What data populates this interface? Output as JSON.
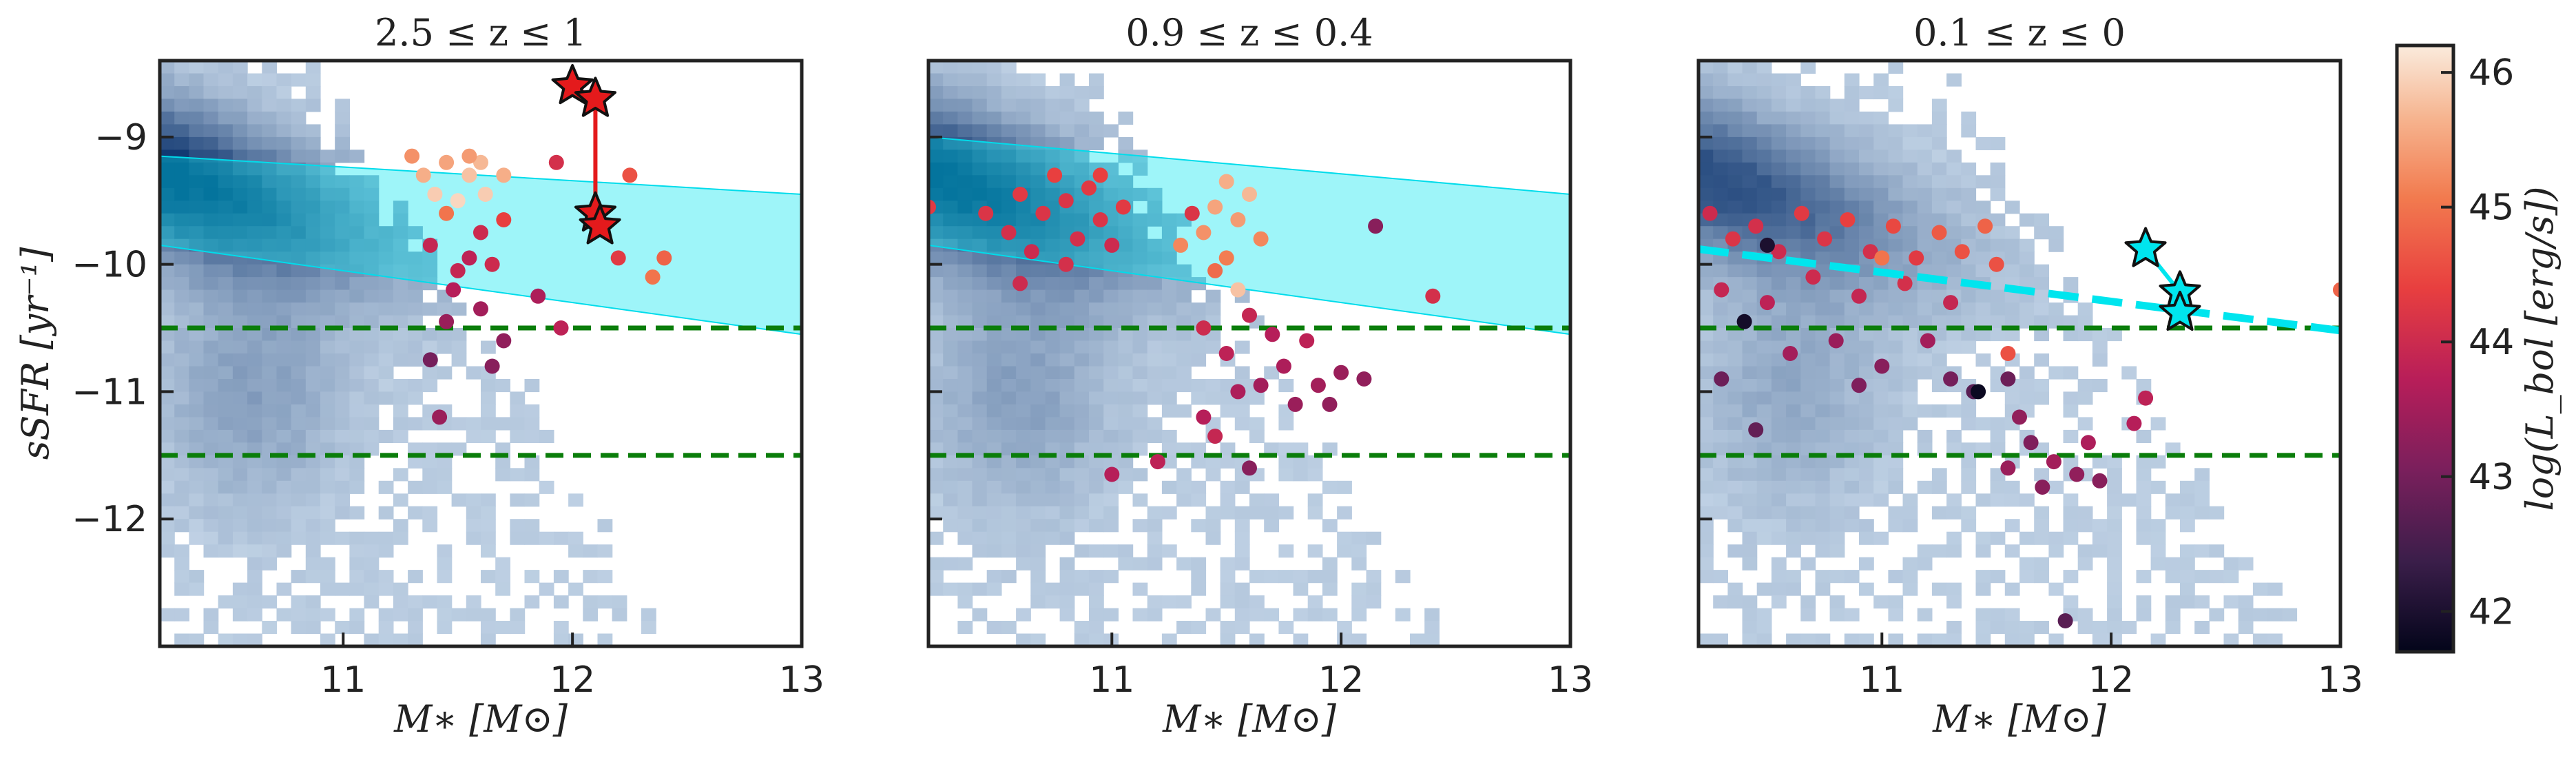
{
  "chart_data": [
    {
      "type": "scatter",
      "title": "2.5 ≤ z ≤ 1",
      "xlabel": "M∗ [M⊙]",
      "ylabel": "sSFR [yr⁻¹]",
      "xlim": [
        10.2,
        13.0
      ],
      "ylim": [
        -13.0,
        -8.4
      ],
      "xticks": [
        "11",
        "12",
        "13"
      ],
      "yticks": [
        "−9",
        "−10",
        "−11",
        "−12"
      ],
      "background": "2D histogram of galaxy population (blue)",
      "hlines": [
        -10.5,
        -11.5
      ],
      "band": {
        "x": [
          10.2,
          13.0
        ],
        "upper": [
          -9.15,
          -9.45
        ],
        "lower": [
          -9.85,
          -10.55
        ]
      },
      "track": [
        [
          12.0,
          -8.6
        ],
        [
          12.1,
          -8.7
        ],
        [
          12.1,
          -9.6
        ],
        [
          12.12,
          -9.7
        ]
      ],
      "points": [
        {
          "x": 11.3,
          "y": -9.15,
          "lbol": 45.3
        },
        {
          "x": 11.35,
          "y": -9.3,
          "lbol": 45.6
        },
        {
          "x": 11.4,
          "y": -9.45,
          "lbol": 45.9
        },
        {
          "x": 11.45,
          "y": -9.2,
          "lbol": 45.5
        },
        {
          "x": 11.5,
          "y": -9.5,
          "lbol": 46.0
        },
        {
          "x": 11.55,
          "y": -9.3,
          "lbol": 45.8
        },
        {
          "x": 11.6,
          "y": -9.2,
          "lbol": 45.7
        },
        {
          "x": 11.62,
          "y": -9.45,
          "lbol": 45.9
        },
        {
          "x": 11.7,
          "y": -9.3,
          "lbol": 45.6
        },
        {
          "x": 11.55,
          "y": -9.15,
          "lbol": 45.4
        },
        {
          "x": 11.45,
          "y": -9.6,
          "lbol": 45.0
        },
        {
          "x": 11.7,
          "y": -9.65,
          "lbol": 44.4
        },
        {
          "x": 11.6,
          "y": -9.75,
          "lbol": 44.0
        },
        {
          "x": 11.55,
          "y": -9.95,
          "lbol": 43.8
        },
        {
          "x": 11.5,
          "y": -10.05,
          "lbol": 43.9
        },
        {
          "x": 11.65,
          "y": -10.0,
          "lbol": 44.0
        },
        {
          "x": 11.48,
          "y": -10.2,
          "lbol": 43.7
        },
        {
          "x": 11.6,
          "y": -10.35,
          "lbol": 43.5
        },
        {
          "x": 11.45,
          "y": -10.45,
          "lbol": 43.4
        },
        {
          "x": 11.7,
          "y": -10.6,
          "lbol": 43.3
        },
        {
          "x": 11.65,
          "y": -10.8,
          "lbol": 43.2
        },
        {
          "x": 11.38,
          "y": -10.75,
          "lbol": 43.0
        },
        {
          "x": 11.42,
          "y": -11.2,
          "lbol": 43.4
        },
        {
          "x": 11.85,
          "y": -10.25,
          "lbol": 43.6
        },
        {
          "x": 11.95,
          "y": -10.5,
          "lbol": 43.8
        },
        {
          "x": 11.93,
          "y": -9.2,
          "lbol": 44.1
        },
        {
          "x": 12.2,
          "y": -9.95,
          "lbol": 44.3
        },
        {
          "x": 12.25,
          "y": -9.3,
          "lbol": 44.6
        },
        {
          "x": 12.35,
          "y": -10.1,
          "lbol": 45.0
        },
        {
          "x": 12.4,
          "y": -9.95,
          "lbol": 44.8
        },
        {
          "x": 11.38,
          "y": -9.85,
          "lbol": 43.9
        }
      ],
      "stars": [
        {
          "x": 12.0,
          "y": -8.6,
          "color": "#e41a1c"
        },
        {
          "x": 12.1,
          "y": -8.7,
          "color": "#e41a1c"
        },
        {
          "x": 12.1,
          "y": -9.6,
          "color": "#e41a1c"
        },
        {
          "x": 12.12,
          "y": -9.7,
          "color": "#e41a1c"
        }
      ]
    },
    {
      "type": "scatter",
      "title": "0.9 ≤ z ≤ 0.4",
      "xlabel": "M∗ [M⊙]",
      "xlim": [
        10.2,
        13.0
      ],
      "ylim": [
        -13.0,
        -8.4
      ],
      "xticks": [
        "11",
        "12",
        "13"
      ],
      "hlines": [
        -10.5,
        -11.5
      ],
      "band": {
        "x": [
          10.2,
          13.0
        ],
        "upper": [
          -9.0,
          -9.45
        ],
        "lower": [
          -9.85,
          -10.55
        ]
      },
      "points": [
        {
          "x": 10.2,
          "y": -9.55,
          "lbol": 44.3
        },
        {
          "x": 10.45,
          "y": -9.6,
          "lbol": 44.2
        },
        {
          "x": 10.55,
          "y": -9.75,
          "lbol": 44.1
        },
        {
          "x": 10.6,
          "y": -9.45,
          "lbol": 44.3
        },
        {
          "x": 10.65,
          "y": -9.9,
          "lbol": 44.0
        },
        {
          "x": 10.7,
          "y": -9.6,
          "lbol": 44.2
        },
        {
          "x": 10.75,
          "y": -9.3,
          "lbol": 44.4
        },
        {
          "x": 10.8,
          "y": -9.5,
          "lbol": 44.2
        },
        {
          "x": 10.85,
          "y": -9.8,
          "lbol": 44.1
        },
        {
          "x": 10.9,
          "y": -9.4,
          "lbol": 44.3
        },
        {
          "x": 10.95,
          "y": -9.65,
          "lbol": 44.2
        },
        {
          "x": 11.0,
          "y": -9.85,
          "lbol": 44.0
        },
        {
          "x": 11.05,
          "y": -9.55,
          "lbol": 44.3
        },
        {
          "x": 10.6,
          "y": -10.15,
          "lbol": 44.0
        },
        {
          "x": 10.8,
          "y": -10.0,
          "lbol": 44.1
        },
        {
          "x": 10.95,
          "y": -9.3,
          "lbol": 44.4
        },
        {
          "x": 11.3,
          "y": -9.85,
          "lbol": 45.2
        },
        {
          "x": 11.4,
          "y": -9.75,
          "lbol": 45.3
        },
        {
          "x": 11.45,
          "y": -9.55,
          "lbol": 45.5
        },
        {
          "x": 11.5,
          "y": -9.35,
          "lbol": 45.6
        },
        {
          "x": 11.55,
          "y": -9.65,
          "lbol": 45.4
        },
        {
          "x": 11.6,
          "y": -9.45,
          "lbol": 45.7
        },
        {
          "x": 11.65,
          "y": -9.8,
          "lbol": 45.2
        },
        {
          "x": 11.5,
          "y": -9.95,
          "lbol": 45.1
        },
        {
          "x": 11.55,
          "y": -10.2,
          "lbol": 45.8
        },
        {
          "x": 11.45,
          "y": -10.05,
          "lbol": 44.9
        },
        {
          "x": 11.4,
          "y": -10.5,
          "lbol": 44.0
        },
        {
          "x": 11.5,
          "y": -10.7,
          "lbol": 43.8
        },
        {
          "x": 11.6,
          "y": -10.4,
          "lbol": 43.9
        },
        {
          "x": 11.7,
          "y": -10.55,
          "lbol": 43.7
        },
        {
          "x": 11.75,
          "y": -10.8,
          "lbol": 43.6
        },
        {
          "x": 11.65,
          "y": -10.95,
          "lbol": 43.5
        },
        {
          "x": 11.55,
          "y": -11.0,
          "lbol": 43.6
        },
        {
          "x": 11.8,
          "y": -11.1,
          "lbol": 43.4
        },
        {
          "x": 11.85,
          "y": -10.6,
          "lbol": 43.8
        },
        {
          "x": 11.9,
          "y": -10.95,
          "lbol": 43.5
        },
        {
          "x": 11.95,
          "y": -11.1,
          "lbol": 43.3
        },
        {
          "x": 12.0,
          "y": -10.85,
          "lbol": 43.4
        },
        {
          "x": 11.4,
          "y": -11.2,
          "lbol": 43.7
        },
        {
          "x": 11.45,
          "y": -11.35,
          "lbol": 43.9
        },
        {
          "x": 11.2,
          "y": -11.55,
          "lbol": 43.8
        },
        {
          "x": 11.0,
          "y": -11.65,
          "lbol": 43.7
        },
        {
          "x": 11.6,
          "y": -11.6,
          "lbol": 43.2
        },
        {
          "x": 12.15,
          "y": -9.7,
          "lbol": 43.2
        },
        {
          "x": 12.4,
          "y": -10.25,
          "lbol": 44.1
        },
        {
          "x": 12.1,
          "y": -10.9,
          "lbol": 43.3
        },
        {
          "x": 11.35,
          "y": -9.6,
          "lbol": 44.2
        }
      ]
    },
    {
      "type": "scatter",
      "title": "0.1 ≤ z ≤ 0",
      "xlabel": "M∗ [M⊙]",
      "xlim": [
        10.2,
        13.0
      ],
      "ylim": [
        -13.0,
        -8.4
      ],
      "xticks": [
        "11",
        "12",
        "13"
      ],
      "hlines": [
        -10.5,
        -11.5
      ],
      "fit_line": {
        "x": [
          10.2,
          13.0
        ],
        "y": [
          -9.88,
          -10.52
        ],
        "color": "#00e5ee"
      },
      "track": [
        [
          12.15,
          -9.88
        ],
        [
          12.3,
          -10.22
        ],
        [
          12.3,
          -10.38
        ]
      ],
      "points": [
        {
          "x": 10.25,
          "y": -9.6,
          "lbol": 44.0
        },
        {
          "x": 10.35,
          "y": -9.8,
          "lbol": 44.2
        },
        {
          "x": 10.45,
          "y": -9.7,
          "lbol": 44.1
        },
        {
          "x": 10.55,
          "y": -9.9,
          "lbol": 44.0
        },
        {
          "x": 10.65,
          "y": -9.6,
          "lbol": 44.3
        },
        {
          "x": 10.75,
          "y": -9.8,
          "lbol": 44.2
        },
        {
          "x": 10.85,
          "y": -9.65,
          "lbol": 44.4
        },
        {
          "x": 10.95,
          "y": -9.9,
          "lbol": 44.1
        },
        {
          "x": 11.05,
          "y": -9.7,
          "lbol": 44.5
        },
        {
          "x": 11.15,
          "y": -9.95,
          "lbol": 44.3
        },
        {
          "x": 11.25,
          "y": -9.75,
          "lbol": 44.7
        },
        {
          "x": 11.35,
          "y": -9.9,
          "lbol": 44.6
        },
        {
          "x": 11.45,
          "y": -9.7,
          "lbol": 44.8
        },
        {
          "x": 11.5,
          "y": -10.0,
          "lbol": 44.6
        },
        {
          "x": 10.3,
          "y": -10.2,
          "lbol": 43.9
        },
        {
          "x": 10.5,
          "y": -10.3,
          "lbol": 43.8
        },
        {
          "x": 10.7,
          "y": -10.1,
          "lbol": 44.0
        },
        {
          "x": 10.9,
          "y": -10.25,
          "lbol": 43.9
        },
        {
          "x": 11.1,
          "y": -10.15,
          "lbol": 44.1
        },
        {
          "x": 11.3,
          "y": -10.3,
          "lbol": 43.9
        },
        {
          "x": 10.4,
          "y": -10.45,
          "lbol": 41.9
        },
        {
          "x": 10.5,
          "y": -9.85,
          "lbol": 42.0
        },
        {
          "x": 10.6,
          "y": -10.7,
          "lbol": 43.5
        },
        {
          "x": 10.8,
          "y": -10.6,
          "lbol": 43.4
        },
        {
          "x": 10.9,
          "y": -10.95,
          "lbol": 43.1
        },
        {
          "x": 11.0,
          "y": -10.8,
          "lbol": 43.2
        },
        {
          "x": 11.2,
          "y": -10.6,
          "lbol": 43.5
        },
        {
          "x": 11.3,
          "y": -10.9,
          "lbol": 43.0
        },
        {
          "x": 11.4,
          "y": -11.0,
          "lbol": 42.7
        },
        {
          "x": 11.42,
          "y": -11.0,
          "lbol": 41.8
        },
        {
          "x": 11.55,
          "y": -10.9,
          "lbol": 42.9
        },
        {
          "x": 11.6,
          "y": -11.2,
          "lbol": 43.3
        },
        {
          "x": 11.65,
          "y": -11.4,
          "lbol": 43.1
        },
        {
          "x": 11.55,
          "y": -11.6,
          "lbol": 43.4
        },
        {
          "x": 11.7,
          "y": -11.75,
          "lbol": 43.2
        },
        {
          "x": 11.75,
          "y": -11.55,
          "lbol": 43.5
        },
        {
          "x": 11.85,
          "y": -11.65,
          "lbol": 43.3
        },
        {
          "x": 11.9,
          "y": -11.4,
          "lbol": 43.6
        },
        {
          "x": 11.95,
          "y": -11.7,
          "lbol": 43.2
        },
        {
          "x": 10.45,
          "y": -11.3,
          "lbol": 42.8
        },
        {
          "x": 10.3,
          "y": -10.9,
          "lbol": 42.9
        },
        {
          "x": 12.1,
          "y": -11.25,
          "lbol": 43.7
        },
        {
          "x": 12.15,
          "y": -11.05,
          "lbol": 43.8
        },
        {
          "x": 11.8,
          "y": -12.8,
          "lbol": 42.7
        },
        {
          "x": 11.55,
          "y": -10.7,
          "lbol": 44.6
        },
        {
          "x": 13.0,
          "y": -10.2,
          "lbol": 44.8
        },
        {
          "x": 11.0,
          "y": -9.95,
          "lbol": 45.0
        }
      ],
      "stars": [
        {
          "x": 12.15,
          "y": -9.88,
          "color": "#00e5ee"
        },
        {
          "x": 12.3,
          "y": -10.22,
          "color": "#00e5ee"
        },
        {
          "x": 12.3,
          "y": -10.38,
          "color": "#00e5ee"
        }
      ]
    }
  ],
  "colorbar": {
    "label": "log(L_bol [erg/s])",
    "min": 41.7,
    "max": 46.2,
    "ticks": [
      "42",
      "43",
      "44",
      "45",
      "46"
    ]
  }
}
